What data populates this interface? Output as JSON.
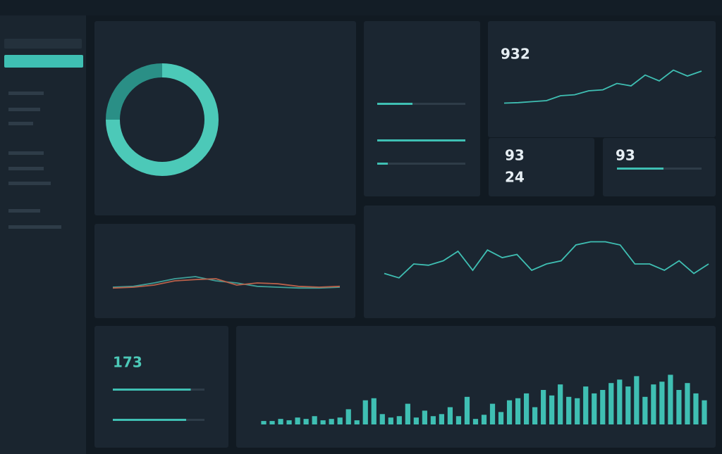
{
  "kpis": {
    "main": "932",
    "small_a": "93",
    "small_b": "24",
    "small_c": "93",
    "bottom": "173"
  },
  "donut": {
    "type": "pie",
    "values": [
      75,
      25
    ],
    "colors": [
      "#4cc9b8",
      "#2a8f86"
    ]
  },
  "progress_mid": {
    "type": "progress",
    "values": [
      40,
      100,
      12
    ],
    "color": "#3fbfb3"
  },
  "progress_card": {
    "type": "progress",
    "values": [
      55
    ],
    "color": "#3fbfb3"
  },
  "progress_bottom": {
    "type": "progress",
    "values": [
      85,
      80
    ],
    "color": "#3fbfb3"
  },
  "line_small": {
    "type": "line",
    "ylim": [
      0,
      100
    ],
    "series": [
      {
        "color": "#3fbfb3",
        "values": [
          5,
          6,
          8,
          10,
          20,
          22,
          30,
          32,
          45,
          40,
          62,
          50,
          72,
          60,
          70
        ]
      }
    ]
  },
  "line_wide": {
    "type": "line",
    "ylim": [
      0,
      100
    ],
    "series": [
      {
        "color": "#3fbfb3",
        "values": [
          35,
          28,
          50,
          48,
          55,
          70,
          40,
          72,
          60,
          65,
          40,
          50,
          55,
          80,
          85,
          85,
          80,
          50,
          50,
          40,
          55,
          35,
          50
        ]
      }
    ]
  },
  "line_dual": {
    "type": "line",
    "ylim": [
      0,
      100
    ],
    "series": [
      {
        "color": "#3f9f98",
        "values": [
          20,
          22,
          30,
          40,
          45,
          35,
          30,
          22,
          20,
          18,
          18,
          20
        ]
      },
      {
        "color": "#b8604a",
        "values": [
          18,
          20,
          25,
          35,
          38,
          40,
          25,
          30,
          28,
          22,
          20,
          22
        ]
      }
    ]
  },
  "bars": {
    "type": "bar",
    "ylim": [
      0,
      100
    ],
    "color": "#3fbfb3",
    "values": [
      5,
      5,
      8,
      6,
      10,
      8,
      12,
      6,
      8,
      10,
      22,
      6,
      35,
      38,
      15,
      10,
      12,
      30,
      10,
      20,
      12,
      15,
      25,
      12,
      40,
      8,
      14,
      30,
      18,
      35,
      38,
      45,
      25,
      50,
      42,
      58,
      40,
      38,
      55,
      45,
      50,
      60,
      65,
      55,
      70,
      40,
      58,
      62,
      72,
      50,
      60,
      45,
      35
    ]
  }
}
